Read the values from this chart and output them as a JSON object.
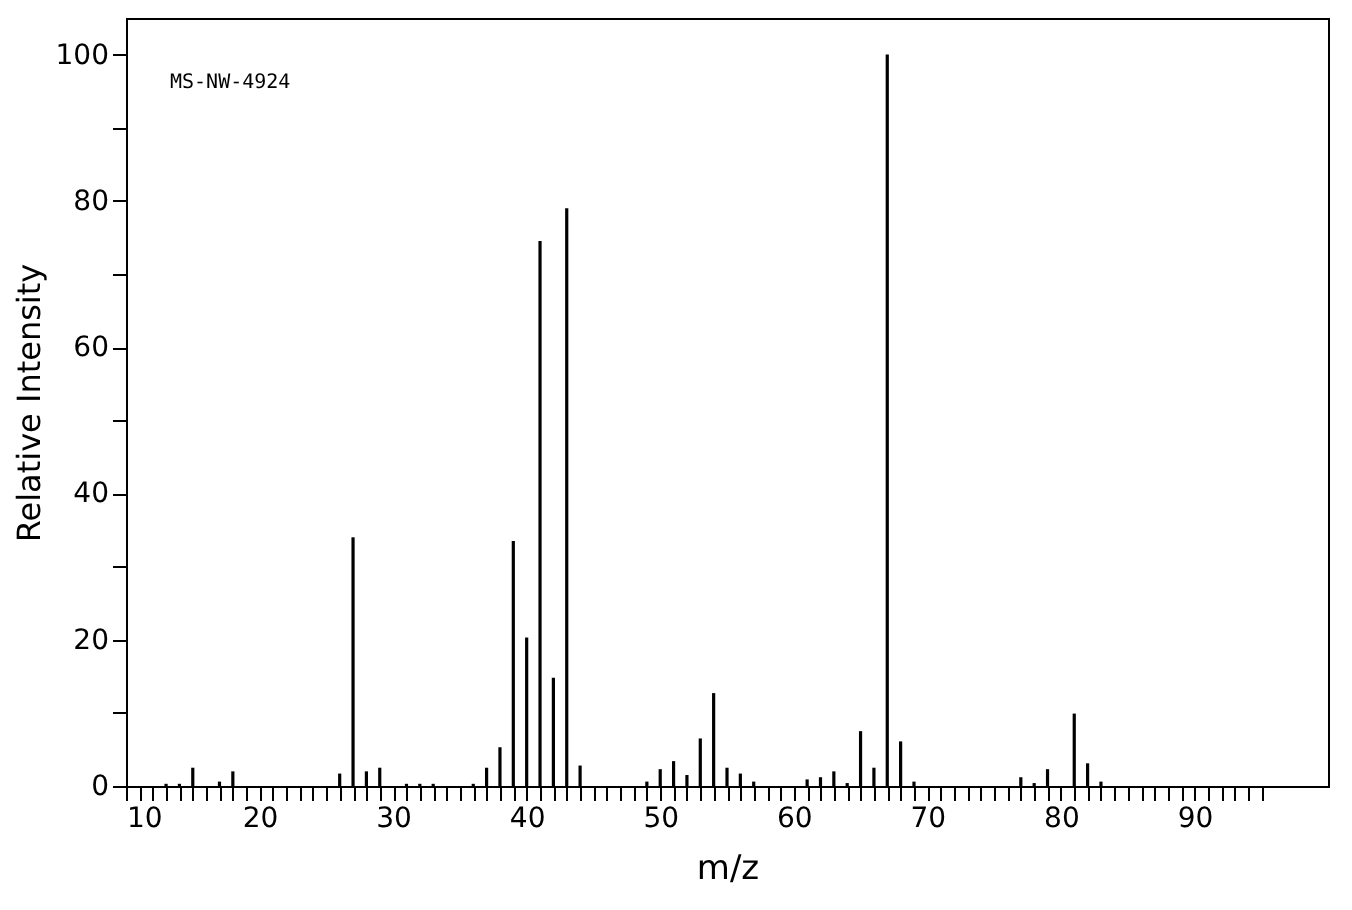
{
  "chart_data": {
    "type": "bar",
    "xlabel": "m/z",
    "ylabel": "Relative Intensity",
    "annotations": [
      "MS-NW-4924"
    ],
    "color": "#000000",
    "x": [
      13,
      14,
      15,
      17,
      18,
      26,
      27,
      28,
      29,
      31,
      32,
      33,
      36,
      37,
      38,
      39,
      40,
      41,
      42,
      43,
      44,
      49,
      50,
      51,
      52,
      53,
      54,
      55,
      56,
      57,
      61,
      62,
      63,
      64,
      65,
      66,
      67,
      68,
      69,
      77,
      78,
      79,
      81,
      82,
      83
    ],
    "values": [
      0.3,
      0.3,
      2.5,
      0.6,
      2,
      1.7,
      34,
      2,
      2.5,
      0.3,
      0.3,
      0.3,
      0.3,
      2.5,
      5.3,
      33.5,
      20.3,
      74.5,
      14.8,
      79,
      2.8,
      0.6,
      2.3,
      3.4,
      1.5,
      6.5,
      12.7,
      2.5,
      1.7,
      0.6,
      0.9,
      1.2,
      2,
      0.4,
      7.5,
      2.5,
      100,
      6.1,
      0.6,
      1.2,
      0.4,
      2.3,
      9.9,
      3.1,
      0.6
    ],
    "xlim": [
      10,
      100
    ],
    "xticks": [
      10,
      {
        "value": 11,
        "label": null
      },
      {
        "value": 12,
        "label": null
      },
      {
        "value": 13,
        "label": null
      },
      {
        "value": 14,
        "label": null
      },
      {
        "value": 15,
        "label": null
      },
      {
        "value": 16,
        "label": null
      },
      {
        "value": 17,
        "label": null
      },
      {
        "value": 18,
        "label": null
      },
      {
        "value": 19,
        "label": null
      },
      20,
      {
        "value": 21,
        "label": null
      },
      {
        "value": 22,
        "label": null
      },
      {
        "value": 23,
        "label": null
      },
      {
        "value": 24,
        "label": null
      },
      {
        "value": 25,
        "label": null
      },
      {
        "value": 26,
        "label": null
      },
      {
        "value": 27,
        "label": null
      },
      {
        "value": 28,
        "label": null
      },
      {
        "value": 29,
        "label": null
      },
      30,
      {
        "value": 31,
        "label": null
      },
      {
        "value": 32,
        "label": null
      },
      {
        "value": 33,
        "label": null
      },
      {
        "value": 34,
        "label": null
      },
      {
        "value": 35,
        "label": null
      },
      {
        "value": 36,
        "label": null
      },
      {
        "value": 37,
        "label": null
      },
      {
        "value": 38,
        "label": null
      },
      {
        "value": 39,
        "label": null
      },
      40,
      {
        "value": 41,
        "label": null
      },
      {
        "value": 42,
        "label": null
      },
      {
        "value": 43,
        "label": null
      },
      {
        "value": 44,
        "label": null
      },
      {
        "value": 45,
        "label": null
      },
      {
        "value": 46,
        "label": null
      },
      {
        "value": 47,
        "label": null
      },
      {
        "value": 48,
        "label": null
      },
      {
        "value": 49,
        "label": null
      },
      50,
      {
        "value": 51,
        "label": null
      },
      {
        "value": 52,
        "label": null
      },
      {
        "value": 53,
        "label": null
      },
      {
        "value": 54,
        "label": null
      },
      {
        "value": 55,
        "label": null
      },
      {
        "value": 56,
        "label": null
      },
      {
        "value": 57,
        "label": null
      },
      {
        "value": 58,
        "label": null
      },
      {
        "value": 59,
        "label": null
      },
      60,
      {
        "value": 61,
        "label": null
      },
      {
        "value": 62,
        "label": null
      },
      {
        "value": 63,
        "label": null
      },
      {
        "value": 64,
        "label": null
      },
      {
        "value": 65,
        "label": null
      },
      {
        "value": 66,
        "label": null
      },
      {
        "value": 67,
        "label": null
      },
      {
        "value": 68,
        "label": null
      },
      {
        "value": 69,
        "label": null
      },
      70,
      {
        "value": 71,
        "label": null
      },
      {
        "value": 72,
        "label": null
      },
      {
        "value": 73,
        "label": null
      },
      {
        "value": 74,
        "label": null
      },
      {
        "value": 75,
        "label": null
      },
      {
        "value": 76,
        "label": null
      },
      {
        "value": 77,
        "label": null
      },
      {
        "value": 78,
        "label": null
      },
      {
        "value": 79,
        "label": null
      },
      80,
      {
        "value": 81,
        "label": null
      },
      {
        "value": 82,
        "label": null
      },
      {
        "value": 83,
        "label": null
      },
      {
        "value": 84,
        "label": null
      },
      {
        "value": 85,
        "label": null
      },
      {
        "value": 86,
        "label": null
      },
      {
        "value": 87,
        "label": null
      },
      {
        "value": 88,
        "label": null
      },
      {
        "value": 89,
        "label": null
      },
      90,
      {
        "value": 91,
        "label": null
      },
      {
        "value": 92,
        "label": null
      },
      {
        "value": 93,
        "label": null
      },
      {
        "value": 94,
        "label": null
      },
      {
        "value": 95,
        "label": null
      }
    ],
    "ylim": [
      0,
      105
    ],
    "yticks": [
      0,
      {
        "value": 10,
        "label": null
      },
      20,
      {
        "value": 30,
        "label": null
      },
      40,
      {
        "value": 50,
        "label": null
      },
      60,
      {
        "value": 70,
        "label": null
      },
      80,
      {
        "value": 90,
        "label": null
      },
      100
    ],
    "grid": false
  }
}
